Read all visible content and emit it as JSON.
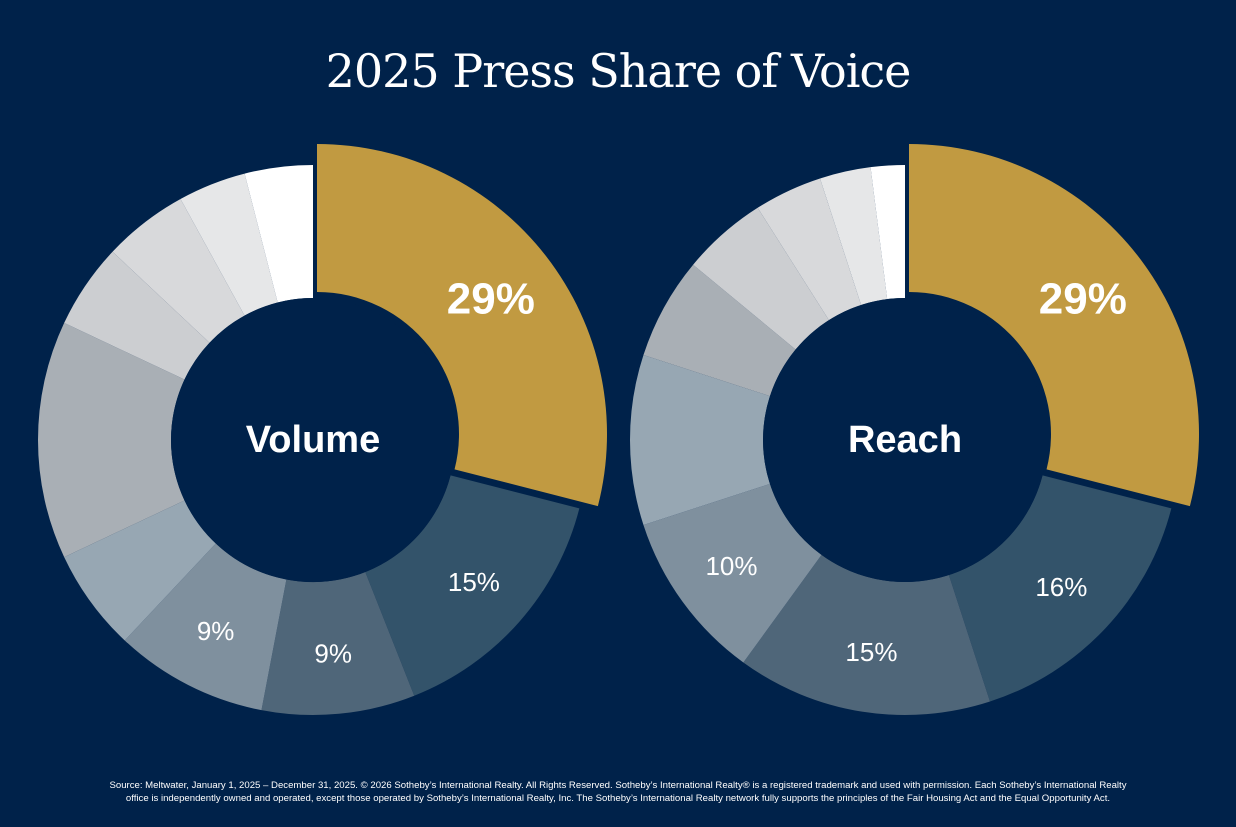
{
  "title": "2025 Press Share of Voice",
  "colors": {
    "background": "#00224a",
    "highlight": "#c19a41",
    "segments": [
      "#c19a41",
      "#33536a",
      "#4f6679",
      "#7f909e",
      "#97a7b3",
      "#a9afb5",
      "#ccced1",
      "#d8d9db",
      "#e6e7e8",
      "#ffffff"
    ]
  },
  "chart_data": [
    {
      "type": "donut",
      "center_label": "Volume",
      "values": [
        29,
        15,
        9,
        9,
        6,
        14,
        5,
        5,
        4,
        4
      ],
      "labels": [
        "29%",
        "15%",
        "9%",
        "9%",
        "",
        "",
        "",
        "",
        "",
        ""
      ],
      "segment_colors": [
        "#c19a41",
        "#33536a",
        "#4f6679",
        "#7f909e",
        "#97a7b3",
        "#a9afb5",
        "#ccced1",
        "#d8d9db",
        "#e6e7e8",
        "#ffffff"
      ]
    },
    {
      "type": "donut",
      "center_label": "Reach",
      "values": [
        29,
        16,
        15,
        10,
        10,
        6,
        5,
        4,
        3,
        2
      ],
      "labels": [
        "29%",
        "16%",
        "15%",
        "10%",
        "",
        "",
        "",
        "",
        "",
        ""
      ],
      "segment_colors": [
        "#c19a41",
        "#33536a",
        "#4f6679",
        "#7f909e",
        "#97a7b3",
        "#a9afb5",
        "#ccced1",
        "#d8d9db",
        "#e6e7e8",
        "#ffffff"
      ]
    }
  ],
  "footer": {
    "line1": "Source: Meltwater, January 1, 2025 – December 31, 2025. © 2026 Sotheby’s International Realty. All Rights Reserved. Sotheby’s International Realty® is a registered trademark and used with permission. Each Sotheby’s International Realty",
    "line2": "office is independently owned and operated, except those operated by Sotheby’s International Realty, Inc. The Sotheby’s International Realty network fully supports the principles of the Fair Housing Act and the Equal Opportunity Act."
  }
}
